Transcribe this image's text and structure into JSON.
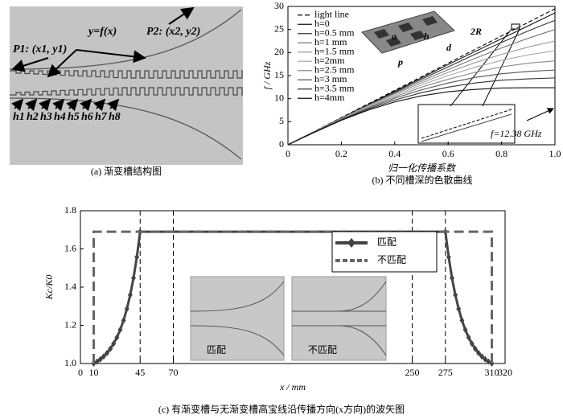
{
  "diagram": {
    "caption": "(a) 渐变槽结构图",
    "curve_label": "y=f(x)",
    "p1_label": "P1: (x1, y1)",
    "p2_label": "P2: (x2, y2)",
    "slot_labels": [
      "h1",
      "h2",
      "h3",
      "h4",
      "h5",
      "h6",
      "h7",
      "h8"
    ]
  },
  "chart_data": [
    {
      "type": "line",
      "caption": "(b) 不同槽深的色散曲线",
      "xlabel": "归一化传播系数",
      "ylabel": "f / GHz",
      "x": [
        0,
        0.1,
        0.2,
        0.3,
        0.4,
        0.5,
        0.6,
        0.7,
        0.8,
        0.9,
        1
      ],
      "xlim": [
        0,
        1
      ],
      "ylim": [
        0,
        30
      ],
      "xticks": [
        0,
        0.2,
        0.4,
        0.6,
        0.8,
        {
          "value": 1,
          "label": "1.0"
        }
      ],
      "yticks": [
        0,
        5,
        10,
        15,
        20,
        25,
        30
      ],
      "legend": "upper left",
      "series": [
        {
          "name": "light line",
          "color": "#000000",
          "linestyle": "dashed",
          "values": [
            0,
            2.95,
            5.9,
            8.85,
            11.8,
            14.75,
            17.7,
            20.65,
            23.6,
            26.55,
            29.5
          ]
        },
        {
          "name": "h=0",
          "color": "#111111",
          "values": [
            0,
            2.9,
            5.8,
            8.7,
            11.6,
            14.5,
            17.4,
            20.2,
            23.0,
            25.8,
            28.6
          ]
        },
        {
          "name": "h=0.5 mm",
          "color": "#333333",
          "values": [
            0,
            2.9,
            5.8,
            8.6,
            11.4,
            14.2,
            16.9,
            19.6,
            22.2,
            24.7,
            27.0
          ]
        },
        {
          "name": "h=1 mm",
          "color": "#777777",
          "values": [
            0,
            2.9,
            5.7,
            8.5,
            11.2,
            13.8,
            16.3,
            18.7,
            21.0,
            23.1,
            25.0
          ]
        },
        {
          "name": "h=1.5 mm",
          "color": "#999999",
          "values": [
            0,
            2.9,
            5.7,
            8.4,
            11.0,
            13.4,
            15.7,
            17.8,
            19.6,
            21.2,
            22.5
          ]
        },
        {
          "name": "h=2mm",
          "color": "#aaaaaa",
          "values": [
            0,
            2.9,
            5.6,
            8.3,
            10.7,
            13.0,
            15.0,
            16.8,
            18.3,
            19.5,
            20.4
          ]
        },
        {
          "name": "h=2.5 mm",
          "color": "#888888",
          "values": [
            0,
            2.8,
            5.5,
            8.1,
            10.4,
            12.5,
            14.2,
            15.7,
            16.9,
            17.7,
            18.2
          ]
        },
        {
          "name": "h=3 mm",
          "color": "#555555",
          "values": [
            0,
            2.8,
            5.5,
            7.9,
            10.1,
            11.9,
            13.4,
            14.6,
            15.4,
            15.9,
            16.2
          ]
        },
        {
          "name": "h=3.5 mm",
          "color": "#333333",
          "values": [
            0,
            2.8,
            5.4,
            7.7,
            9.7,
            11.3,
            12.5,
            13.4,
            14.0,
            14.3,
            14.5
          ]
        },
        {
          "name": "h=4mm",
          "color": "#111111",
          "values": [
            0,
            2.7,
            5.3,
            7.5,
            9.3,
            10.6,
            11.5,
            12.0,
            12.3,
            12.37,
            12.38
          ]
        }
      ],
      "annotations": [
        "2R",
        "a",
        "p",
        "h",
        "d",
        "f=12.38 GHz"
      ]
    },
    {
      "type": "line",
      "caption": "(c)  有渐变槽与无渐变槽高宝线沿传播方向(x方向)的波矢图",
      "xlabel": "x / mm",
      "ylabel": "Kc/K0",
      "xlim": [
        0,
        320
      ],
      "ylim": [
        1,
        1.8
      ],
      "xticks": [
        0,
        10,
        45,
        70,
        250,
        275,
        310,
        320
      ],
      "yticks": [
        {
          "value": 1,
          "label": "1.0"
        },
        1.2,
        1.4,
        1.6,
        1.8
      ],
      "vlines": [
        45,
        70,
        250,
        275
      ],
      "legend": "upper right",
      "series": [
        {
          "name": "匹配",
          "color": "#444444",
          "marker": "diamond",
          "x": [
            10,
            12.5,
            15,
            17.5,
            20,
            22.5,
            25,
            27.5,
            30,
            32.5,
            35,
            37.5,
            40,
            42.5,
            45,
            275,
            277.5,
            280,
            282.5,
            285,
            287.5,
            290,
            292.5,
            295,
            297.5,
            300,
            302.5,
            305,
            307.5,
            310
          ],
          "values": [
            1.0,
            1.01,
            1.022,
            1.037,
            1.055,
            1.077,
            1.104,
            1.137,
            1.177,
            1.226,
            1.286,
            1.359,
            1.448,
            1.557,
            1.69,
            1.69,
            1.557,
            1.448,
            1.359,
            1.286,
            1.226,
            1.177,
            1.137,
            1.104,
            1.077,
            1.055,
            1.037,
            1.022,
            1.01,
            1.0
          ]
        },
        {
          "name": "不匹配",
          "color": "#666666",
          "linestyle": "dashed",
          "x": [
            10,
            10,
            310,
            310
          ],
          "values": [
            1.0,
            1.69,
            1.69,
            1.0
          ]
        }
      ],
      "annotations": [
        "匹配",
        "不匹配"
      ]
    }
  ]
}
